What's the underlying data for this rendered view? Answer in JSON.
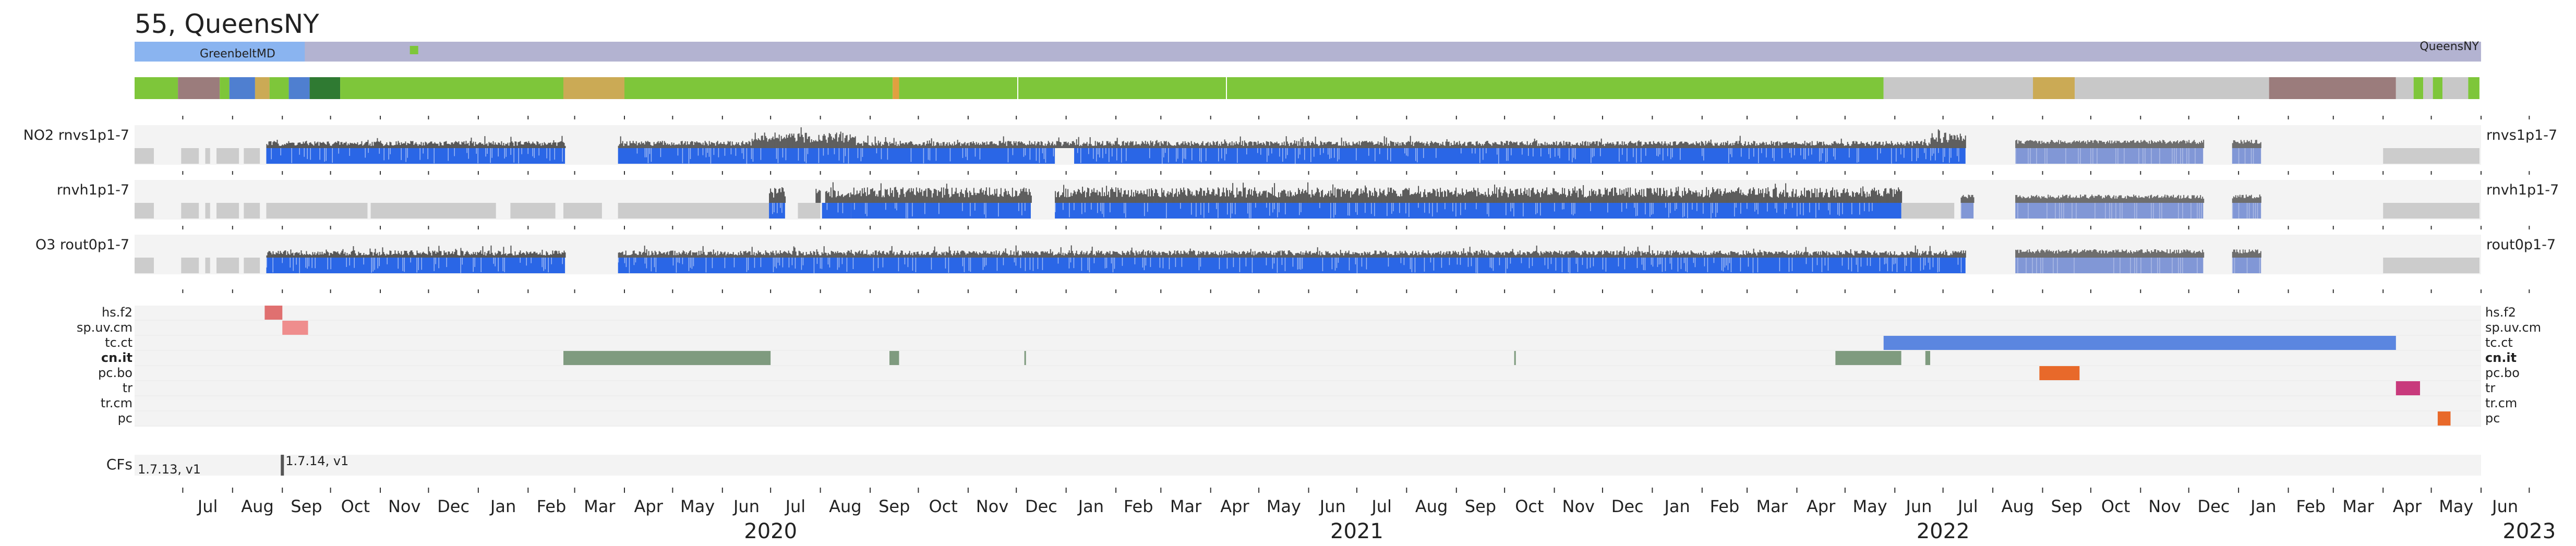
{
  "title": "55, QueensNY",
  "chart_data": {
    "type": "timeline",
    "x_range": [
      "2019-06-01",
      "2023-06-01"
    ],
    "months": [
      "Jul",
      "Aug",
      "Sep",
      "Oct",
      "Nov",
      "Dec",
      "Jan",
      "Feb",
      "Mar",
      "Apr",
      "May",
      "Jun",
      "Jul",
      "Aug",
      "Sep",
      "Oct",
      "Nov",
      "Dec",
      "Jan",
      "Feb",
      "Mar",
      "Apr",
      "May",
      "Jun",
      "Jul",
      "Aug",
      "Sep",
      "Oct",
      "Nov",
      "Dec",
      "Jan",
      "Feb",
      "Mar",
      "Apr",
      "May",
      "Jun",
      "Jul",
      "Aug",
      "Sep",
      "Oct",
      "Nov",
      "Dec",
      "Jan",
      "Feb",
      "Mar",
      "Apr",
      "May",
      "Jun"
    ],
    "years": [
      "2020",
      "2021",
      "2022",
      "2023"
    ],
    "locations": [
      {
        "label": "GreenbeltMD",
        "start": "2019-06-01",
        "end": "2019-09-15",
        "color": "#8ab4f0"
      },
      {
        "label": "QueensNY",
        "start": "2019-09-15",
        "end": "2023-05-31",
        "color": "#b3b3d1"
      }
    ],
    "location_marker": {
      "date": "2019-11-22",
      "color": "#7ec63a"
    },
    "status_bar": [
      {
        "start": "2019-06-01",
        "end": "2019-06-28",
        "color": "#7ec63a"
      },
      {
        "start": "2019-06-28",
        "end": "2019-07-24",
        "color": "#9b7c7c"
      },
      {
        "start": "2019-07-24",
        "end": "2019-07-30",
        "color": "#7ec63a"
      },
      {
        "start": "2019-07-30",
        "end": "2019-08-15",
        "color": "#4f7fd0"
      },
      {
        "start": "2019-08-15",
        "end": "2019-08-24",
        "color": "#cbaa55"
      },
      {
        "start": "2019-08-24",
        "end": "2019-09-05",
        "color": "#7ec63a"
      },
      {
        "start": "2019-09-05",
        "end": "2019-09-18",
        "color": "#4f7fd0"
      },
      {
        "start": "2019-09-18",
        "end": "2019-10-07",
        "color": "#2f7a32"
      },
      {
        "start": "2019-10-07",
        "end": "2020-02-23",
        "color": "#7ec63a"
      },
      {
        "start": "2020-02-23",
        "end": "2020-04-01",
        "color": "#cbaa55"
      },
      {
        "start": "2020-04-01",
        "end": "2020-09-15",
        "color": "#7ec63a"
      },
      {
        "start": "2020-09-15",
        "end": "2020-09-19",
        "color": "#e0a040"
      },
      {
        "start": "2020-09-19",
        "end": "2022-05-25",
        "color": "#7ec63a"
      },
      {
        "start": "2022-05-25",
        "end": "2022-08-26",
        "color": "#c8c8c8"
      },
      {
        "start": "2022-08-26",
        "end": "2022-09-21",
        "color": "#cbaa55"
      },
      {
        "start": "2022-09-21",
        "end": "2023-01-20",
        "color": "#c8c8c8"
      },
      {
        "start": "2023-01-20",
        "end": "2023-04-09",
        "color": "#9b7c7c"
      },
      {
        "start": "2023-04-09",
        "end": "2023-04-20",
        "color": "#c8c8c8"
      },
      {
        "start": "2023-04-20",
        "end": "2023-04-26",
        "color": "#7ec63a"
      },
      {
        "start": "2023-04-26",
        "end": "2023-05-02",
        "color": "#c8c8c8"
      },
      {
        "start": "2023-05-02",
        "end": "2023-05-08",
        "color": "#7ec63a"
      },
      {
        "start": "2023-05-08",
        "end": "2023-05-24",
        "color": "#c8c8c8"
      },
      {
        "start": "2023-05-24",
        "end": "2023-05-31",
        "color": "#7ec63a"
      }
    ],
    "data_panels": [
      {
        "left_label": "NO2  rnvs1p1-7",
        "right_label": "rnvs1p1-7",
        "gray": [
          [
            "2019-06-01",
            "2019-06-13"
          ],
          [
            "2019-06-30",
            "2019-07-11"
          ],
          [
            "2019-07-15",
            "2019-07-18"
          ],
          [
            "2019-07-22",
            "2019-08-05"
          ],
          [
            "2019-08-08",
            "2019-08-18"
          ]
        ],
        "blue": [
          [
            "2019-08-22",
            "2020-02-24"
          ],
          [
            "2020-03-28",
            "2020-12-25"
          ],
          [
            "2021-01-06",
            "2022-07-15"
          ]
        ],
        "dark": [
          [
            "2019-08-22",
            "2020-02-24"
          ],
          [
            "2020-03-28",
            "2022-07-15"
          ]
        ],
        "lightblue": [
          [
            "2022-08-15",
            "2022-12-10"
          ],
          [
            "2022-12-28",
            "2023-01-15"
          ]
        ],
        "gray_end": [
          [
            "2023-04-01",
            "2023-05-31"
          ]
        ]
      },
      {
        "left_label": "rnvh1p1-7",
        "right_label": "rnvh1p1-7",
        "gray": [
          [
            "2019-06-01",
            "2019-06-13"
          ],
          [
            "2019-06-30",
            "2019-07-11"
          ],
          [
            "2019-07-15",
            "2019-07-18"
          ],
          [
            "2019-07-22",
            "2019-08-05"
          ],
          [
            "2019-08-08",
            "2019-08-18"
          ],
          [
            "2019-08-22",
            "2019-10-24"
          ],
          [
            "2019-10-26",
            "2020-01-12"
          ],
          [
            "2020-01-21",
            "2020-02-18"
          ],
          [
            "2020-02-23",
            "2020-03-18"
          ],
          [
            "2020-03-28",
            "2020-06-30"
          ],
          [
            "2020-07-18",
            "2020-08-01"
          ],
          [
            "2020-09-01",
            "2020-12-10"
          ],
          [
            "2022-06-05",
            "2022-07-08"
          ],
          [
            "2023-04-01",
            "2023-05-31"
          ]
        ],
        "blue": [
          [
            "2020-06-30",
            "2020-07-10"
          ],
          [
            "2020-08-02",
            "2020-08-20"
          ],
          [
            "2020-08-20",
            "2020-12-10"
          ],
          [
            "2020-12-25",
            "2022-06-05"
          ]
        ],
        "dark": [
          [
            "2020-06-30",
            "2020-07-10"
          ],
          [
            "2020-07-29",
            "2020-08-01"
          ],
          [
            "2020-08-04",
            "2020-12-10"
          ],
          [
            "2020-12-25",
            "2022-06-05"
          ]
        ],
        "lightblue": [
          [
            "2022-07-12",
            "2022-07-20"
          ],
          [
            "2022-08-15",
            "2022-12-10"
          ],
          [
            "2022-12-28",
            "2023-01-15"
          ]
        ],
        "gray_end": []
      },
      {
        "left_label": "O3  rout0p1-7",
        "right_label": "rout0p1-7",
        "gray": [
          [
            "2019-06-01",
            "2019-06-13"
          ],
          [
            "2019-06-30",
            "2019-07-11"
          ],
          [
            "2019-07-15",
            "2019-07-18"
          ],
          [
            "2019-07-22",
            "2019-08-05"
          ],
          [
            "2019-08-08",
            "2019-08-18"
          ],
          [
            "2023-04-01",
            "2023-05-31"
          ]
        ],
        "blue": [
          [
            "2019-08-22",
            "2020-02-24"
          ],
          [
            "2020-03-28",
            "2022-07-15"
          ]
        ],
        "dark": [
          [
            "2019-08-22",
            "2020-02-24"
          ],
          [
            "2020-03-28",
            "2022-07-15"
          ]
        ],
        "lightblue": [
          [
            "2022-08-15",
            "2022-12-10"
          ],
          [
            "2022-12-28",
            "2023-01-15"
          ]
        ],
        "gray_end": []
      }
    ],
    "flag_rows": [
      {
        "label": "hs.f2",
        "bold": false,
        "segments": [
          {
            "start": "2019-08-21",
            "end": "2019-09-01",
            "color": "#e07070"
          }
        ]
      },
      {
        "label": "sp.uv.cm",
        "bold": false,
        "segments": [
          {
            "start": "2019-09-01",
            "end": "2019-09-17",
            "color": "#ef8d8d"
          }
        ]
      },
      {
        "label": "tc.ct",
        "bold": false,
        "segments": [
          {
            "start": "2022-05-25",
            "end": "2023-04-09",
            "color": "#5b86e0"
          }
        ]
      },
      {
        "label": "cn.it",
        "bold": true,
        "segments": [
          {
            "start": "2020-02-23",
            "end": "2020-07-01",
            "color": "#7f9b7f"
          },
          {
            "start": "2020-09-13",
            "end": "2020-09-19",
            "color": "#7f9b7f"
          },
          {
            "start": "2020-12-06",
            "end": "2020-12-07",
            "color": "#7f9b7f"
          },
          {
            "start": "2021-10-07",
            "end": "2021-10-08",
            "color": "#7f9b7f"
          },
          {
            "start": "2022-04-25",
            "end": "2022-06-05",
            "color": "#7f9b7f"
          },
          {
            "start": "2022-06-20",
            "end": "2022-06-23",
            "color": "#7f9b7f"
          }
        ]
      },
      {
        "label": "pc.bo",
        "bold": false,
        "segments": [
          {
            "start": "2022-08-30",
            "end": "2022-09-24",
            "color": "#e8692a"
          }
        ]
      },
      {
        "label": "tr",
        "bold": false,
        "segments": [
          {
            "start": "2023-04-09",
            "end": "2023-04-24",
            "color": "#c83a7c"
          }
        ]
      },
      {
        "label": "tr.cm",
        "bold": false,
        "segments": []
      },
      {
        "label": "pc",
        "bold": false,
        "segments": [
          {
            "start": "2023-05-05",
            "end": "2023-05-13",
            "color": "#e8692a"
          }
        ]
      }
    ],
    "cfs": {
      "label": "CFs",
      "entries": [
        {
          "date": "2019-06-01",
          "text": "1.7.13, v1"
        },
        {
          "date": "2019-09-01",
          "text": "1.7.14, v1"
        }
      ]
    }
  }
}
